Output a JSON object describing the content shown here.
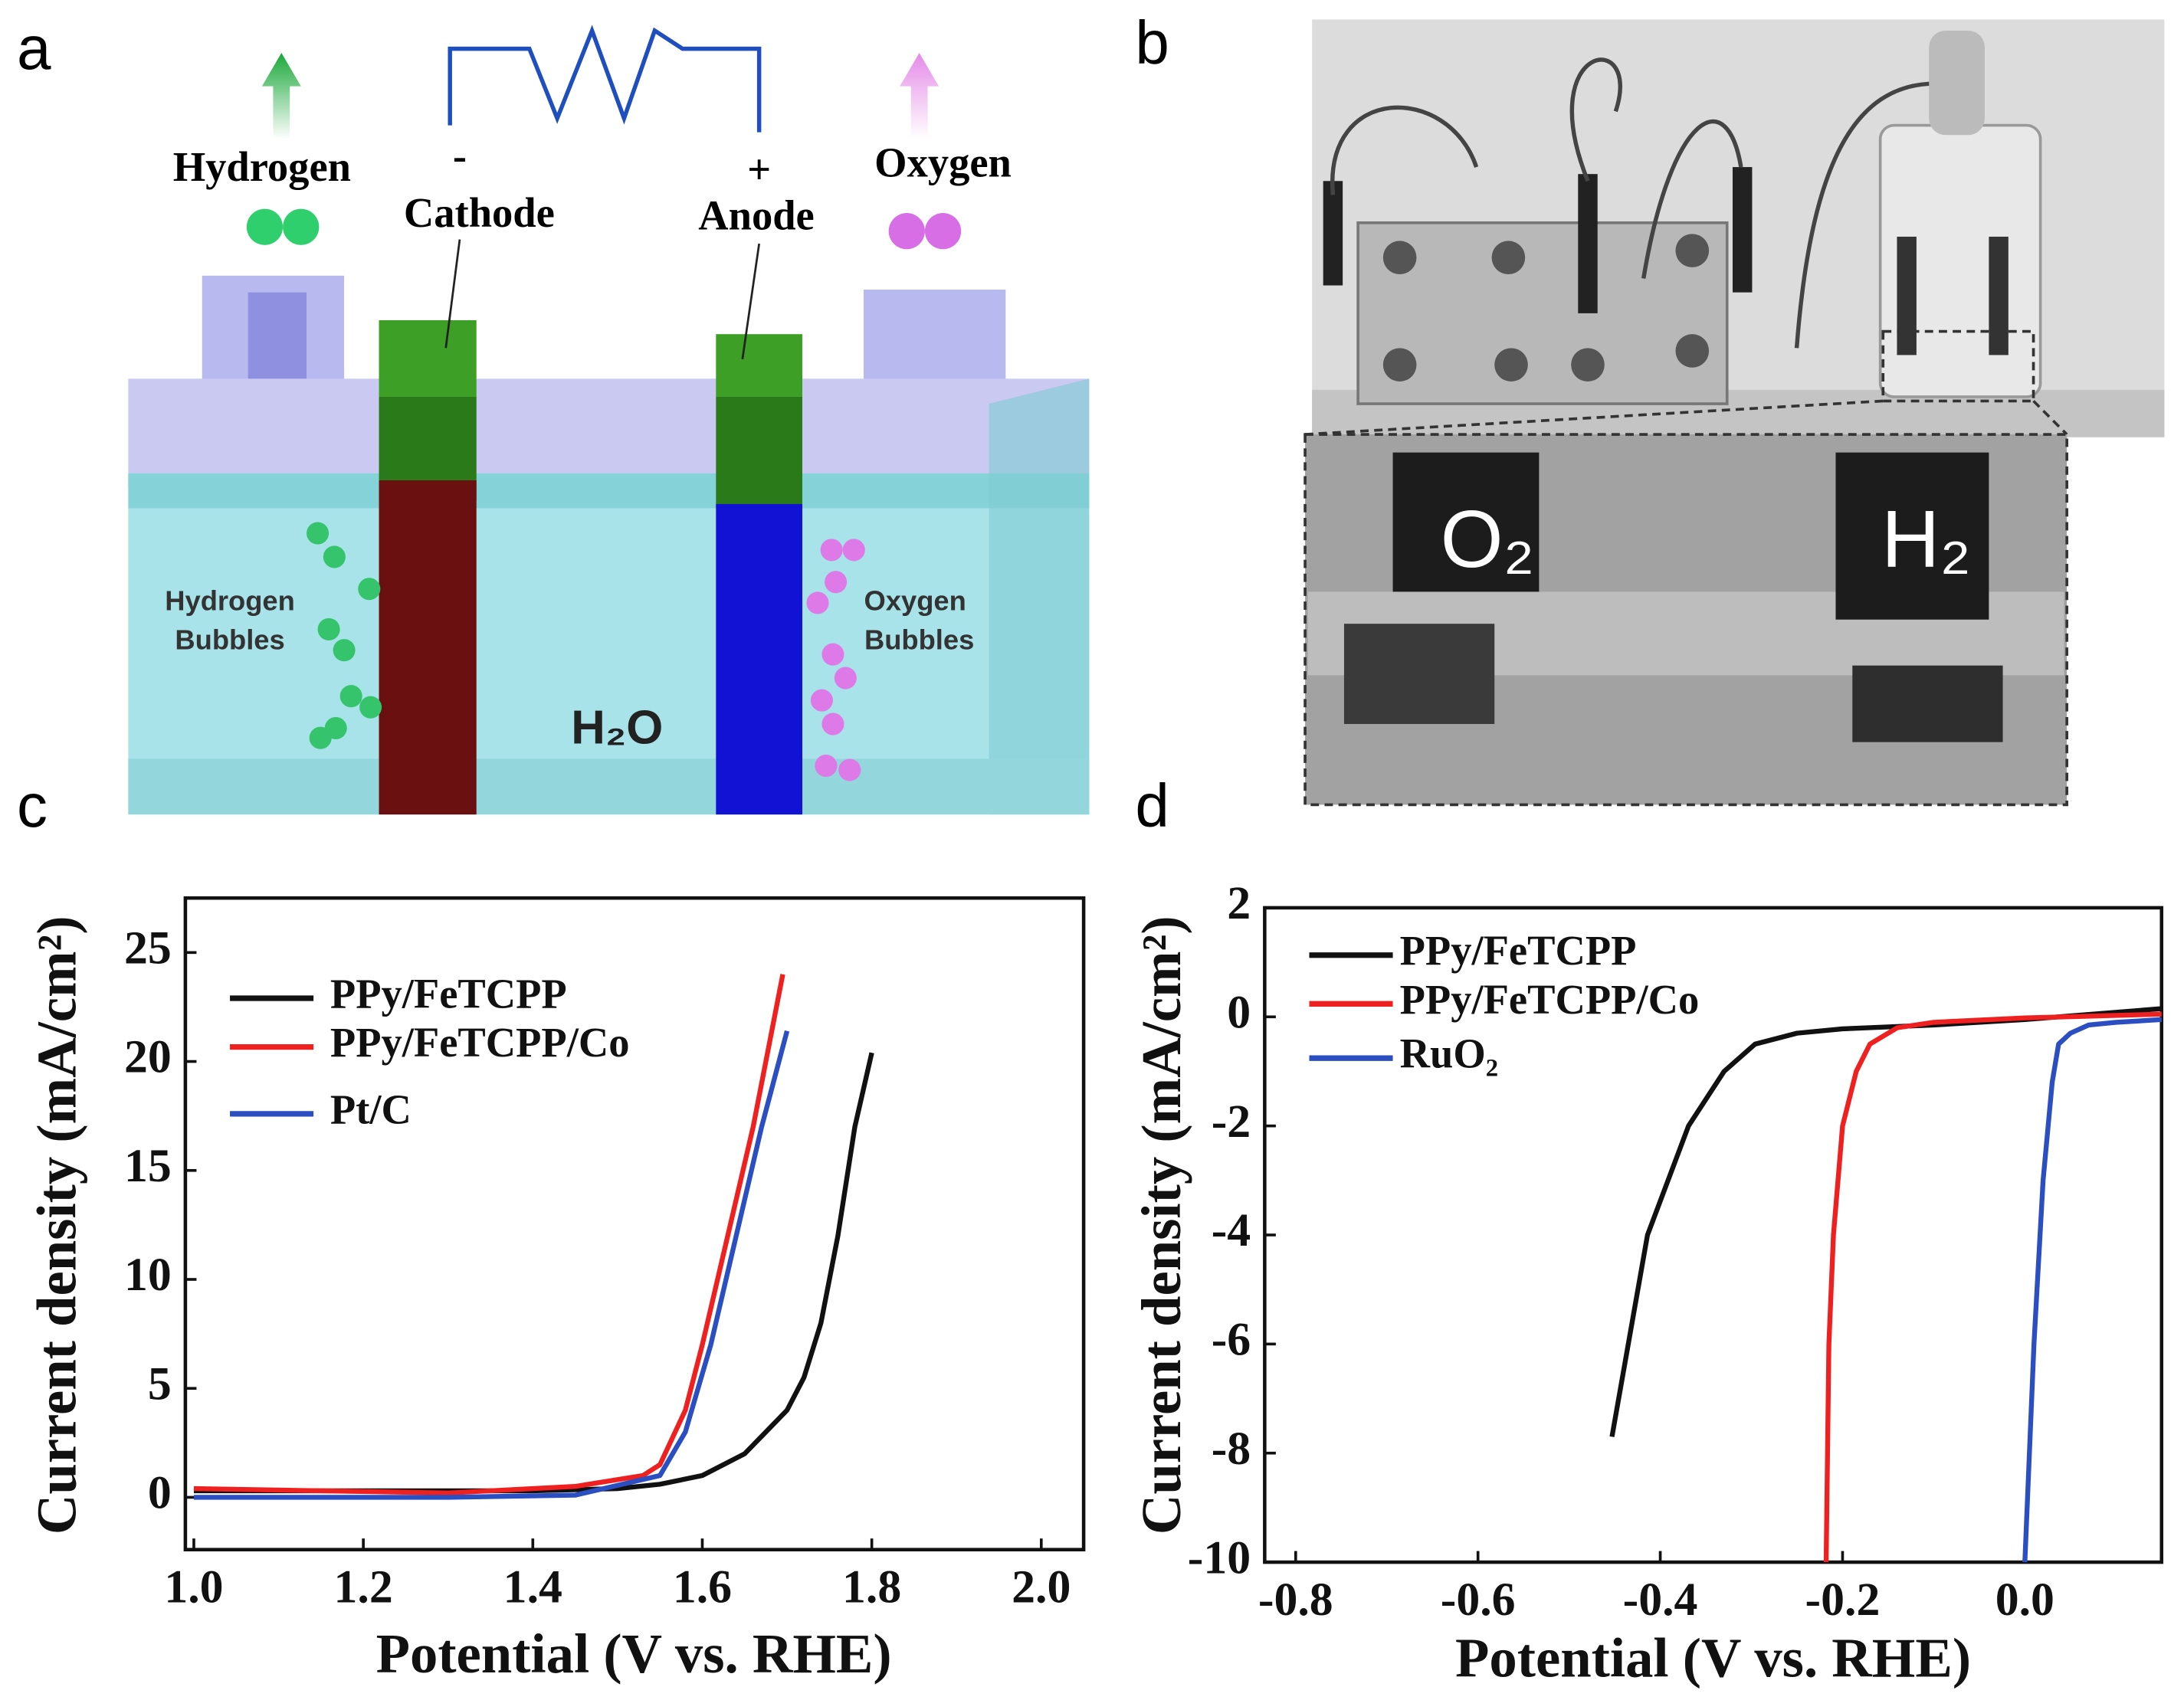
{
  "panels": [
    "a",
    "b",
    "c",
    "d"
  ],
  "diagram": {
    "products": [
      "Hydrogen",
      "Oxygen"
    ],
    "cathode": {
      "sign": "-",
      "label": "Cathode"
    },
    "anode": {
      "sign": "+",
      "label": "Anode"
    },
    "bubbles": [
      [
        "Hydrogen",
        "Bubbles"
      ],
      [
        "Oxygen",
        "Bubbles"
      ]
    ],
    "electrolyte": "H₂O"
  },
  "photo": {
    "labels": [
      "O₂",
      "H₂"
    ]
  },
  "chart_data": [
    {
      "type": "line",
      "xlabel": "Potential (V vs. RHE)",
      "ylabel": "Current density (mA/cm²)",
      "xlim": [
        0.99,
        2.05
      ],
      "ylim": [
        -2.4,
        27.5
      ],
      "xticks": [
        {
          "value": 1,
          "label": "1.0"
        },
        1.2,
        1.4,
        1.6,
        1.8,
        {
          "value": 2,
          "label": "2.0"
        }
      ],
      "yticks": [
        0,
        5,
        10,
        15,
        20,
        25
      ],
      "series": [
        {
          "name": "PPy/FeTCPP",
          "color": "#111111",
          "x": [
            1.0,
            1.2,
            1.4,
            1.5,
            1.55,
            1.6,
            1.65,
            1.7,
            1.72,
            1.74,
            1.76,
            1.78,
            1.8
          ],
          "values": [
            0.3,
            0.3,
            0.3,
            0.4,
            0.6,
            1.0,
            2.0,
            4.0,
            5.5,
            8.0,
            12.0,
            17.0,
            20.4
          ]
        },
        {
          "name": "PPy/FeTCPP/Co",
          "color": "#ee2020",
          "x": [
            1.0,
            1.3,
            1.45,
            1.53,
            1.55,
            1.58,
            1.6,
            1.63,
            1.66,
            1.68,
            1.695
          ],
          "values": [
            0.4,
            0.2,
            0.5,
            1.0,
            1.5,
            4.0,
            7.0,
            12.0,
            17.0,
            21.0,
            24.0
          ]
        },
        {
          "name": "Pt/C",
          "color": "#2b4fc0",
          "x": [
            1.0,
            1.3,
            1.45,
            1.55,
            1.58,
            1.61,
            1.64,
            1.67,
            1.7
          ],
          "values": [
            0.0,
            0.0,
            0.1,
            1.0,
            3.0,
            7.0,
            12.0,
            17.0,
            21.4
          ]
        }
      ]
    },
    {
      "type": "line",
      "xlabel": "Potential (V vs. RHE)",
      "ylabel": "Current density (mA/cm²)",
      "xlim": [
        -0.834,
        0.15
      ],
      "ylim": [
        -10,
        2
      ],
      "xticks": [
        -0.8,
        -0.6,
        -0.4,
        -0.2,
        {
          "value": 0,
          "label": "0.0"
        }
      ],
      "yticks": [
        2,
        0,
        -2,
        -4,
        -6,
        -8,
        -10
      ],
      "series": [
        {
          "name": "PPy/FeTCPP",
          "color": "#111111",
          "x": [
            -0.453,
            -0.414,
            -0.369,
            -0.33,
            -0.296,
            -0.25,
            -0.2,
            -0.1,
            0.0,
            0.15
          ],
          "values": [
            -7.7,
            -4.0,
            -2.0,
            -1.0,
            -0.5,
            -0.3,
            -0.22,
            -0.15,
            -0.05,
            0.15
          ]
        },
        {
          "name": "PPy/FeTCPP/Co",
          "color": "#ee2020",
          "x": [
            -0.218,
            -0.215,
            -0.21,
            -0.2,
            -0.185,
            -0.17,
            -0.14,
            -0.1,
            0.0,
            0.15
          ],
          "values": [
            -10,
            -6,
            -4,
            -2,
            -1,
            -0.5,
            -0.2,
            -0.1,
            -0.02,
            0.05
          ]
        },
        {
          "name": "RuO₂",
          "color": "#2b4fc0",
          "x": [
            0.0,
            0.01,
            0.02,
            0.03,
            0.037,
            0.05,
            0.07,
            0.1,
            0.15
          ],
          "values": [
            -10,
            -6,
            -3,
            -1.2,
            -0.5,
            -0.3,
            -0.15,
            -0.1,
            -0.05
          ]
        }
      ]
    }
  ]
}
